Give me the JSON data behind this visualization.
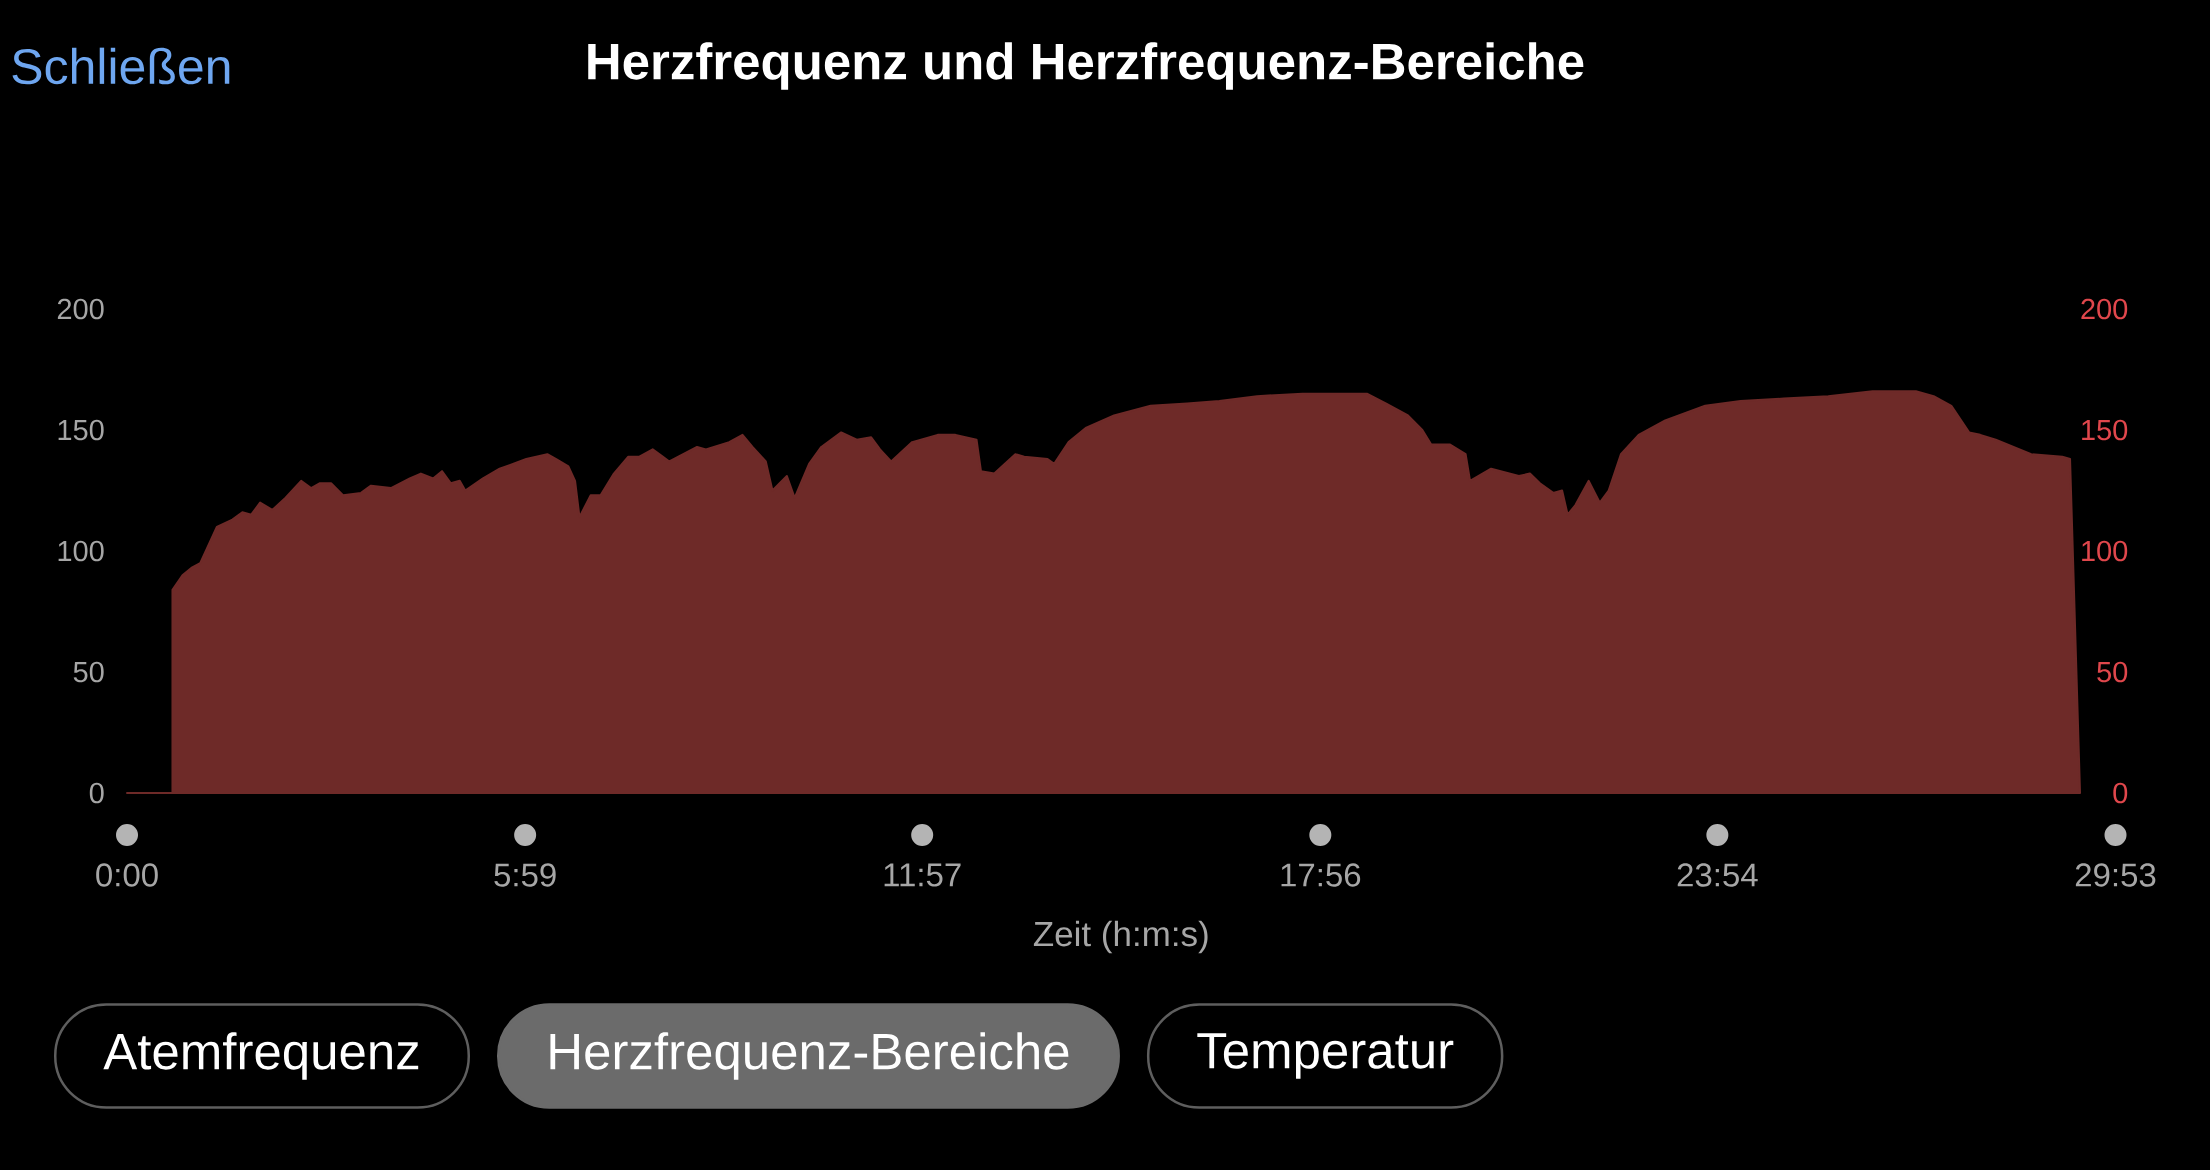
{
  "chart_data": {
    "type": "area",
    "title": "Herzfrequenz und Herzfrequenz-Bereiche",
    "xlabel": "Zeit (h:m:s)",
    "x": [
      0,
      41,
      41,
      50,
      58,
      66,
      75,
      81,
      95,
      104,
      112,
      120,
      131,
      143,
      157,
      166,
      174,
      184,
      195,
      211,
      220,
      238,
      255,
      265,
      276,
      284,
      292,
      300,
      305,
      321,
      336,
      360,
      379,
      387,
      398,
      404,
      408,
      418,
      427,
      439,
      452,
      462,
      474,
      483,
      489,
      514,
      522,
      543,
      555,
      564,
      576,
      582,
      595,
      602,
      615,
      626,
      644,
      658,
      671,
      679,
      689,
      708,
      731,
      747,
      766,
      770,
      782,
      801,
      809,
      830,
      836,
      849,
      865,
      890,
      923,
      956,
      985,
      1019,
      1060,
      1093,
      1118,
      1135,
      1155,
      1168,
      1176,
      1193,
      1207,
      1211,
      1230,
      1255,
      1265,
      1274,
      1286,
      1294,
      1299,
      1306,
      1318,
      1328,
      1336,
      1347,
      1363,
      1387,
      1423,
      1455,
      1494,
      1534,
      1574,
      1613,
      1629,
      1645,
      1661,
      1671,
      1685,
      1717,
      1745,
      1752,
      1761
    ],
    "values": [
      0,
      0,
      84,
      90,
      93,
      95,
      104,
      110,
      113,
      116,
      115,
      120,
      117,
      122,
      129,
      126,
      128,
      128,
      123,
      124,
      127,
      126,
      130,
      132,
      130,
      133,
      128,
      129,
      125,
      130,
      134,
      138,
      140,
      138,
      135,
      129,
      114,
      123,
      123,
      132,
      139,
      139,
      142,
      139,
      137,
      143,
      142,
      145,
      148,
      143,
      137,
      125,
      131,
      122,
      136,
      143,
      149,
      146,
      147,
      142,
      137,
      145,
      148,
      148,
      146,
      133,
      132,
      140,
      139,
      138,
      136,
      145,
      151,
      156,
      160,
      161,
      162,
      164,
      165,
      165,
      165,
      161,
      156,
      150,
      144,
      144,
      140,
      129,
      134,
      131,
      132,
      128,
      124,
      125,
      115,
      119,
      129,
      120,
      125,
      140,
      148,
      154,
      160,
      162,
      163,
      164,
      166,
      166,
      164,
      160,
      149,
      148,
      146,
      140,
      139,
      138,
      0
    ],
    "color": "#6e2a28",
    "xlim": [
      0,
      1793
    ],
    "xticks": [
      {
        "value": 0,
        "label": "0:00"
      },
      {
        "value": 359,
        "label": "5:59"
      },
      {
        "value": 717,
        "label": "11:57"
      },
      {
        "value": 1076,
        "label": "17:56"
      },
      {
        "value": 1434,
        "label": "23:54"
      },
      {
        "value": 1793,
        "label": "29:53"
      }
    ],
    "ylim": [
      0,
      200
    ],
    "yticks": [
      0,
      50,
      100,
      150,
      200
    ],
    "y2lim": [
      0,
      200
    ],
    "y2ticks": [
      0,
      50,
      100,
      150,
      200
    ],
    "annotations": [
      "Schließen",
      "Atemfrequenz",
      "Herzfrequenz-Bereiche",
      "Temperatur"
    ]
  }
}
